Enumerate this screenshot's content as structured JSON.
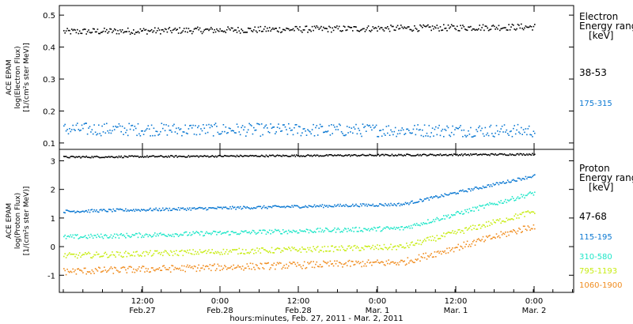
{
  "chart_data": [
    {
      "type": "scatter",
      "panel": "electron",
      "ylabel": [
        "ACE EPAM",
        "log(Electron Flux)",
        "[1/(cm²s ster MeV)]"
      ],
      "yticks": [
        "0.1",
        "0.2",
        "0.3",
        "0.4",
        "0.5"
      ],
      "ylim": [
        0.08,
        0.53
      ],
      "legend_title": [
        "Electron",
        "Energy range",
        "[keV]"
      ],
      "series": [
        {
          "name": "38-53",
          "color": "#000000",
          "values_start": 0.45,
          "values_end": 0.465,
          "scatter": 0.01
        },
        {
          "name": "175-315",
          "color": "#0a78d2",
          "values_start": 0.145,
          "values_end": 0.14,
          "scatter": 0.02
        }
      ]
    },
    {
      "type": "scatter",
      "panel": "proton",
      "ylabel": [
        "ACE EPAM",
        "log(Proton Flux)",
        "[1/(cm²s ster MeV)]"
      ],
      "yticks": [
        "-1",
        "0",
        "1",
        "2",
        "3"
      ],
      "ylim": [
        -1.6,
        3.4
      ],
      "legend_title": [
        "Proton",
        "Energy range",
        "[keV]"
      ],
      "series": [
        {
          "name": "47-68",
          "color": "#000000",
          "values_start": 3.15,
          "values_end": 3.25,
          "scatter": 0.03
        },
        {
          "name": "115-195",
          "color": "#0a78d2",
          "values_start": 1.25,
          "values_end": 2.5,
          "scatter": 0.05
        },
        {
          "name": "310-580",
          "color": "#1ee6c8",
          "values_start": 0.35,
          "values_end": 1.9,
          "scatter": 0.08
        },
        {
          "name": "795-1193",
          "color": "#c8ec14",
          "values_start": -0.3,
          "values_end": 1.25,
          "scatter": 0.1
        },
        {
          "name": "1060-1900",
          "color": "#f08c1e",
          "values_start": -0.85,
          "values_end": 0.75,
          "scatter": 0.12
        }
      ]
    }
  ],
  "x_axis": {
    "title": "hours:minutes, Feb. 27, 2011 - Mar. 2, 2011",
    "ticks": [
      {
        "time": "12:00",
        "date": "Feb.27"
      },
      {
        "time": "0:00",
        "date": "Feb.28"
      },
      {
        "time": "12:00",
        "date": "Feb.28"
      },
      {
        "time": "0:00",
        "date": "Mar. 1"
      },
      {
        "time": "12:00",
        "date": "Mar. 1"
      },
      {
        "time": "0:00",
        "date": "Mar. 2"
      }
    ]
  }
}
